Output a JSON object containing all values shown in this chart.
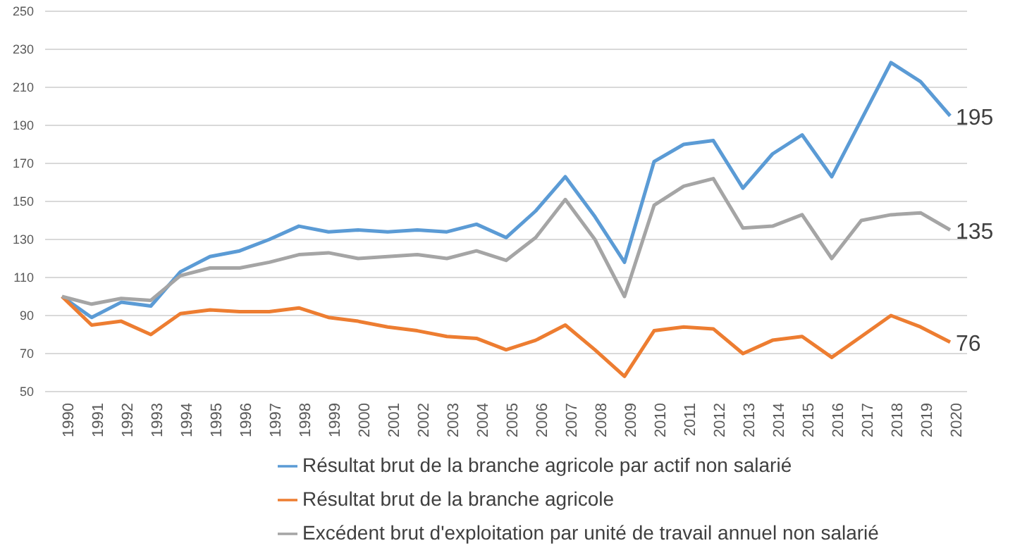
{
  "chart_data": {
    "type": "line",
    "categories": [
      "1990",
      "1991",
      "1992",
      "1993",
      "1994",
      "1995",
      "1996",
      "1997",
      "1998",
      "1999",
      "2000",
      "2001",
      "2002",
      "2003",
      "2004",
      "2005",
      "2006",
      "2007",
      "2008",
      "2009",
      "2010",
      "2011",
      "2012",
      "2013",
      "2014",
      "2015",
      "2016",
      "2017",
      "2018",
      "2019",
      "2020"
    ],
    "series": [
      {
        "name": "Résultat brut de la branche agricole par actif non salarié",
        "color": "#5b9bd5",
        "values": [
          100,
          89,
          97,
          95,
          113,
          121,
          124,
          130,
          137,
          134,
          135,
          134,
          135,
          134,
          138,
          131,
          145,
          163,
          142,
          118,
          171,
          180,
          182,
          157,
          175,
          185,
          163,
          193,
          223,
          213,
          195
        ],
        "value_labels": [
          null,
          null,
          null,
          null,
          null,
          null,
          null,
          null,
          null,
          null,
          null,
          null,
          null,
          null,
          null,
          null,
          null,
          null,
          null,
          null,
          null,
          null,
          null,
          null,
          null,
          null,
          null,
          null,
          null,
          null,
          "195"
        ]
      },
      {
        "name": "Résultat brut de la branche agricole",
        "color": "#ed7d31",
        "values": [
          100,
          85,
          87,
          80,
          91,
          93,
          92,
          92,
          94,
          89,
          87,
          84,
          82,
          79,
          78,
          72,
          77,
          85,
          72,
          58,
          82,
          84,
          83,
          70,
          77,
          79,
          68,
          79,
          90,
          84,
          76
        ],
        "value_labels": [
          null,
          null,
          null,
          null,
          null,
          null,
          null,
          null,
          null,
          null,
          null,
          null,
          null,
          null,
          null,
          null,
          null,
          null,
          null,
          null,
          null,
          null,
          null,
          null,
          null,
          null,
          null,
          null,
          null,
          null,
          "76"
        ]
      },
      {
        "name": "Excédent brut d'exploitation par unité de travail annuel non salarié",
        "color": "#a5a5a5",
        "values": [
          100,
          96,
          99,
          98,
          111,
          115,
          115,
          118,
          122,
          123,
          120,
          121,
          122,
          120,
          124,
          119,
          131,
          151,
          130,
          100,
          148,
          158,
          162,
          136,
          137,
          143,
          120,
          140,
          143,
          144,
          135
        ],
        "value_labels": [
          null,
          null,
          null,
          null,
          null,
          null,
          null,
          null,
          null,
          null,
          null,
          null,
          null,
          null,
          null,
          null,
          null,
          null,
          null,
          null,
          null,
          null,
          null,
          null,
          null,
          null,
          null,
          null,
          null,
          null,
          "135"
        ]
      }
    ],
    "ylim": [
      50,
      250
    ],
    "yticks": [
      50,
      70,
      90,
      110,
      130,
      150,
      170,
      190,
      210,
      230,
      250
    ],
    "grid": "y",
    "legend": "bottom",
    "marker": "none",
    "line_style": "solid"
  }
}
